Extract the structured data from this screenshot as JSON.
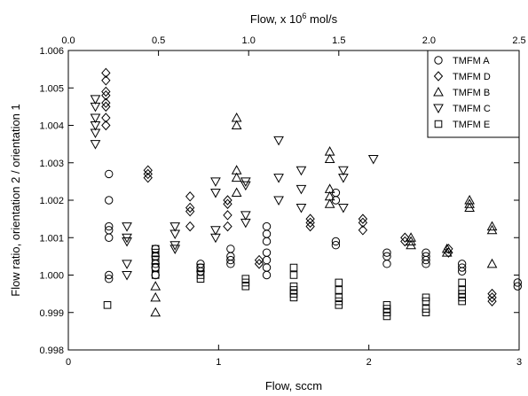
{
  "chart_data": {
    "type": "scatter",
    "xlabel": "Flow, sccm",
    "x2label": "Flow, x 10",
    "x2label_sup": "6",
    "x2label_suffix": " mol/s",
    "ylabel": "Flow ratio, orientation 2 / orientation 1",
    "xlim": [
      0,
      3
    ],
    "x2lim": [
      0,
      2.5
    ],
    "ylim": [
      0.998,
      1.006
    ],
    "x_ticks": [
      "0",
      "1",
      "2",
      "3"
    ],
    "x2_ticks": [
      "0.0",
      "0.5",
      "1.0",
      "1.5",
      "2.0",
      "2.5"
    ],
    "y_ticks": [
      "0.998",
      "0.999",
      "1.000",
      "1.001",
      "1.002",
      "1.003",
      "1.004",
      "1.005",
      "1.006"
    ],
    "legend_position": "top-right",
    "series": [
      {
        "name": "TMFM A",
        "marker": "circle",
        "points": [
          [
            0.27,
            1.0027
          ],
          [
            0.27,
            1.002
          ],
          [
            0.27,
            1.0013
          ],
          [
            0.27,
            1.0012
          ],
          [
            0.27,
            1.001
          ],
          [
            0.27,
            1.0
          ],
          [
            0.27,
            0.9999
          ],
          [
            0.58,
            1.0007
          ],
          [
            0.58,
            1.0005
          ],
          [
            0.58,
            1.0003
          ],
          [
            0.58,
            1.0002
          ],
          [
            0.58,
            1.0
          ],
          [
            0.88,
            1.0003
          ],
          [
            0.88,
            1.0002
          ],
          [
            0.88,
            1.0001
          ],
          [
            1.08,
            1.0007
          ],
          [
            1.08,
            1.0005
          ],
          [
            1.08,
            1.0004
          ],
          [
            1.08,
            1.0003
          ],
          [
            1.32,
            1.0013
          ],
          [
            1.32,
            1.0011
          ],
          [
            1.32,
            1.0009
          ],
          [
            1.32,
            1.0006
          ],
          [
            1.32,
            1.0004
          ],
          [
            1.32,
            1.0002
          ],
          [
            1.32,
            1.0
          ],
          [
            1.78,
            1.0022
          ],
          [
            1.78,
            1.002
          ],
          [
            1.78,
            1.0009
          ],
          [
            1.78,
            1.0008
          ],
          [
            2.12,
            1.0006
          ],
          [
            2.12,
            1.0005
          ],
          [
            2.12,
            1.0003
          ],
          [
            2.38,
            1.0006
          ],
          [
            2.38,
            1.0005
          ],
          [
            2.38,
            1.0004
          ],
          [
            2.38,
            1.0003
          ],
          [
            2.62,
            1.0003
          ],
          [
            2.62,
            1.0002
          ],
          [
            2.62,
            1.0001
          ],
          [
            2.99,
            0.9998
          ],
          [
            2.99,
            0.9997
          ]
        ]
      },
      {
        "name": "TMFM D",
        "marker": "diamond",
        "points": [
          [
            0.25,
            1.0054
          ],
          [
            0.25,
            1.0052
          ],
          [
            0.25,
            1.0049
          ],
          [
            0.25,
            1.0048
          ],
          [
            0.25,
            1.0046
          ],
          [
            0.25,
            1.0045
          ],
          [
            0.25,
            1.0042
          ],
          [
            0.25,
            1.004
          ],
          [
            0.53,
            1.0028
          ],
          [
            0.53,
            1.0027
          ],
          [
            0.53,
            1.0026
          ],
          [
            0.81,
            1.0021
          ],
          [
            0.81,
            1.0018
          ],
          [
            0.81,
            1.0017
          ],
          [
            0.81,
            1.0013
          ],
          [
            1.06,
            1.002
          ],
          [
            1.06,
            1.0019
          ],
          [
            1.06,
            1.0016
          ],
          [
            1.06,
            1.0013
          ],
          [
            1.27,
            1.0004
          ],
          [
            1.27,
            1.0003
          ],
          [
            1.61,
            1.0015
          ],
          [
            1.61,
            1.0014
          ],
          [
            1.61,
            1.0013
          ],
          [
            1.96,
            1.0015
          ],
          [
            1.96,
            1.0014
          ],
          [
            1.96,
            1.0012
          ],
          [
            2.24,
            1.001
          ],
          [
            2.24,
            1.0009
          ],
          [
            2.53,
            1.0007
          ],
          [
            2.53,
            1.0006
          ],
          [
            2.82,
            0.9995
          ],
          [
            2.82,
            0.9994
          ],
          [
            2.82,
            0.9993
          ]
        ]
      },
      {
        "name": "TMFM B",
        "marker": "triangle-up",
        "points": [
          [
            0.58,
            0.9997
          ],
          [
            0.58,
            0.9994
          ],
          [
            0.58,
            0.999
          ],
          [
            1.12,
            1.0042
          ],
          [
            1.12,
            1.004
          ],
          [
            1.12,
            1.0028
          ],
          [
            1.12,
            1.0026
          ],
          [
            1.12,
            1.0022
          ],
          [
            1.74,
            1.0033
          ],
          [
            1.74,
            1.0031
          ],
          [
            1.74,
            1.0023
          ],
          [
            1.74,
            1.0021
          ],
          [
            1.74,
            1.0019
          ],
          [
            2.28,
            1.001
          ],
          [
            2.28,
            1.0009
          ],
          [
            2.28,
            1.0008
          ],
          [
            2.52,
            1.0007
          ],
          [
            2.52,
            1.0006
          ],
          [
            2.67,
            1.002
          ],
          [
            2.67,
            1.0019
          ],
          [
            2.67,
            1.0018
          ],
          [
            2.82,
            1.0013
          ],
          [
            2.82,
            1.0012
          ],
          [
            2.82,
            1.0003
          ]
        ]
      },
      {
        "name": "TMFM C",
        "marker": "triangle-down",
        "points": [
          [
            0.18,
            1.0047
          ],
          [
            0.18,
            1.0045
          ],
          [
            0.18,
            1.0042
          ],
          [
            0.18,
            1.004
          ],
          [
            0.18,
            1.0038
          ],
          [
            0.18,
            1.0035
          ],
          [
            0.39,
            1.0013
          ],
          [
            0.39,
            1.001
          ],
          [
            0.39,
            1.0009
          ],
          [
            0.39,
            1.0003
          ],
          [
            0.39,
            1.0
          ],
          [
            0.71,
            1.0013
          ],
          [
            0.71,
            1.0011
          ],
          [
            0.71,
            1.0008
          ],
          [
            0.71,
            1.0007
          ],
          [
            0.98,
            1.0025
          ],
          [
            0.98,
            1.0022
          ],
          [
            0.98,
            1.0012
          ],
          [
            0.98,
            1.001
          ],
          [
            1.18,
            1.0025
          ],
          [
            1.18,
            1.0024
          ],
          [
            1.18,
            1.0016
          ],
          [
            1.18,
            1.0014
          ],
          [
            1.4,
            1.0036
          ],
          [
            1.4,
            1.0026
          ],
          [
            1.4,
            1.002
          ],
          [
            1.55,
            1.0028
          ],
          [
            1.55,
            1.0023
          ],
          [
            1.55,
            1.0018
          ],
          [
            1.83,
            1.0028
          ],
          [
            1.83,
            1.0026
          ],
          [
            1.83,
            1.0018
          ],
          [
            2.03,
            1.0031
          ]
        ]
      },
      {
        "name": "TMFM E",
        "marker": "square",
        "points": [
          [
            0.26,
            0.9992
          ],
          [
            0.58,
            1.0007
          ],
          [
            0.58,
            1.0006
          ],
          [
            0.58,
            1.0005
          ],
          [
            0.58,
            1.0004
          ],
          [
            0.58,
            1.0002
          ],
          [
            0.58,
            1.0
          ],
          [
            0.88,
            1.0002
          ],
          [
            0.88,
            1.0
          ],
          [
            0.88,
            0.9999
          ],
          [
            1.18,
            0.9999
          ],
          [
            1.18,
            0.9998
          ],
          [
            1.18,
            0.9997
          ],
          [
            1.5,
            1.0002
          ],
          [
            1.5,
            1.0
          ],
          [
            1.5,
            0.9997
          ],
          [
            1.5,
            0.9996
          ],
          [
            1.5,
            0.9995
          ],
          [
            1.5,
            0.9994
          ],
          [
            1.8,
            0.9998
          ],
          [
            1.8,
            0.9996
          ],
          [
            1.8,
            0.9994
          ],
          [
            1.8,
            0.9993
          ],
          [
            1.8,
            0.9992
          ],
          [
            2.12,
            0.9992
          ],
          [
            2.12,
            0.9991
          ],
          [
            2.12,
            0.999
          ],
          [
            2.12,
            0.9989
          ],
          [
            2.38,
            0.9994
          ],
          [
            2.38,
            0.9993
          ],
          [
            2.38,
            0.9991
          ],
          [
            2.38,
            0.999
          ],
          [
            2.62,
            0.9998
          ],
          [
            2.62,
            0.9996
          ],
          [
            2.62,
            0.9995
          ],
          [
            2.62,
            0.9994
          ],
          [
            2.62,
            0.9993
          ]
        ]
      }
    ]
  }
}
